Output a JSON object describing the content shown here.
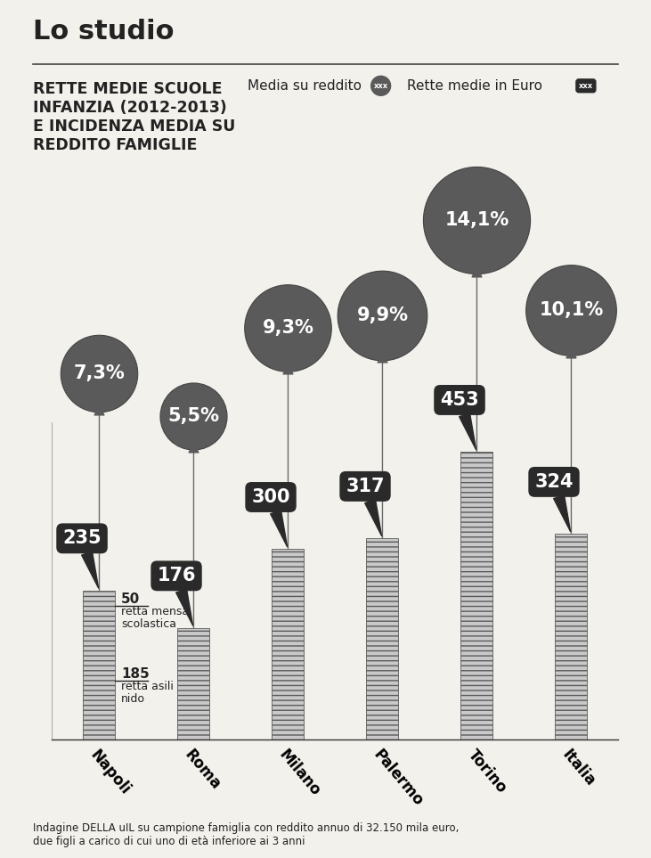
{
  "chart_data": {
    "type": "bar",
    "header": "Lo studio",
    "title": "RETTE MEDIE SCUOLE INFANZIA (2012-2013) E INCIDENZA MEDIA SU REDDITO FAMIGLIE",
    "legend_marker_text": "xxx",
    "legend": "upper right",
    "categories": [
      "Napoli",
      "Roma",
      "Milano",
      "Palermo",
      "Torino",
      "Italia"
    ],
    "series": [
      {
        "name": "Media su reddito",
        "type": "scatter",
        "marker": "o",
        "color": "#5a5a5a",
        "values": [
          7.3,
          5.5,
          9.3,
          9.9,
          14.1,
          10.1
        ],
        "value_labels": [
          "7,3%",
          "5,5%",
          "9,3%",
          "9,9%",
          "14,1%",
          "10,1%"
        ]
      },
      {
        "name": "Rette medie in Euro",
        "type": "bar",
        "color": "#c9c9c9",
        "values": [
          235,
          176,
          300,
          317,
          453,
          324
        ]
      }
    ],
    "breakdown": {
      "category": "Napoli",
      "components": [
        {
          "label": "retta asili nido",
          "value": 185
        },
        {
          "label": "retta mensa scolastica",
          "value": 50
        }
      ]
    },
    "ylim": [
      0,
      500
    ],
    "tick_labels": "x",
    "data_labels": true,
    "footnote": "Indagine DELLA uIL su campione famiglia con reddito annuo di 32.150 mila euro, due figli a carico di cui uno di età inferiore ai 3 anni"
  }
}
